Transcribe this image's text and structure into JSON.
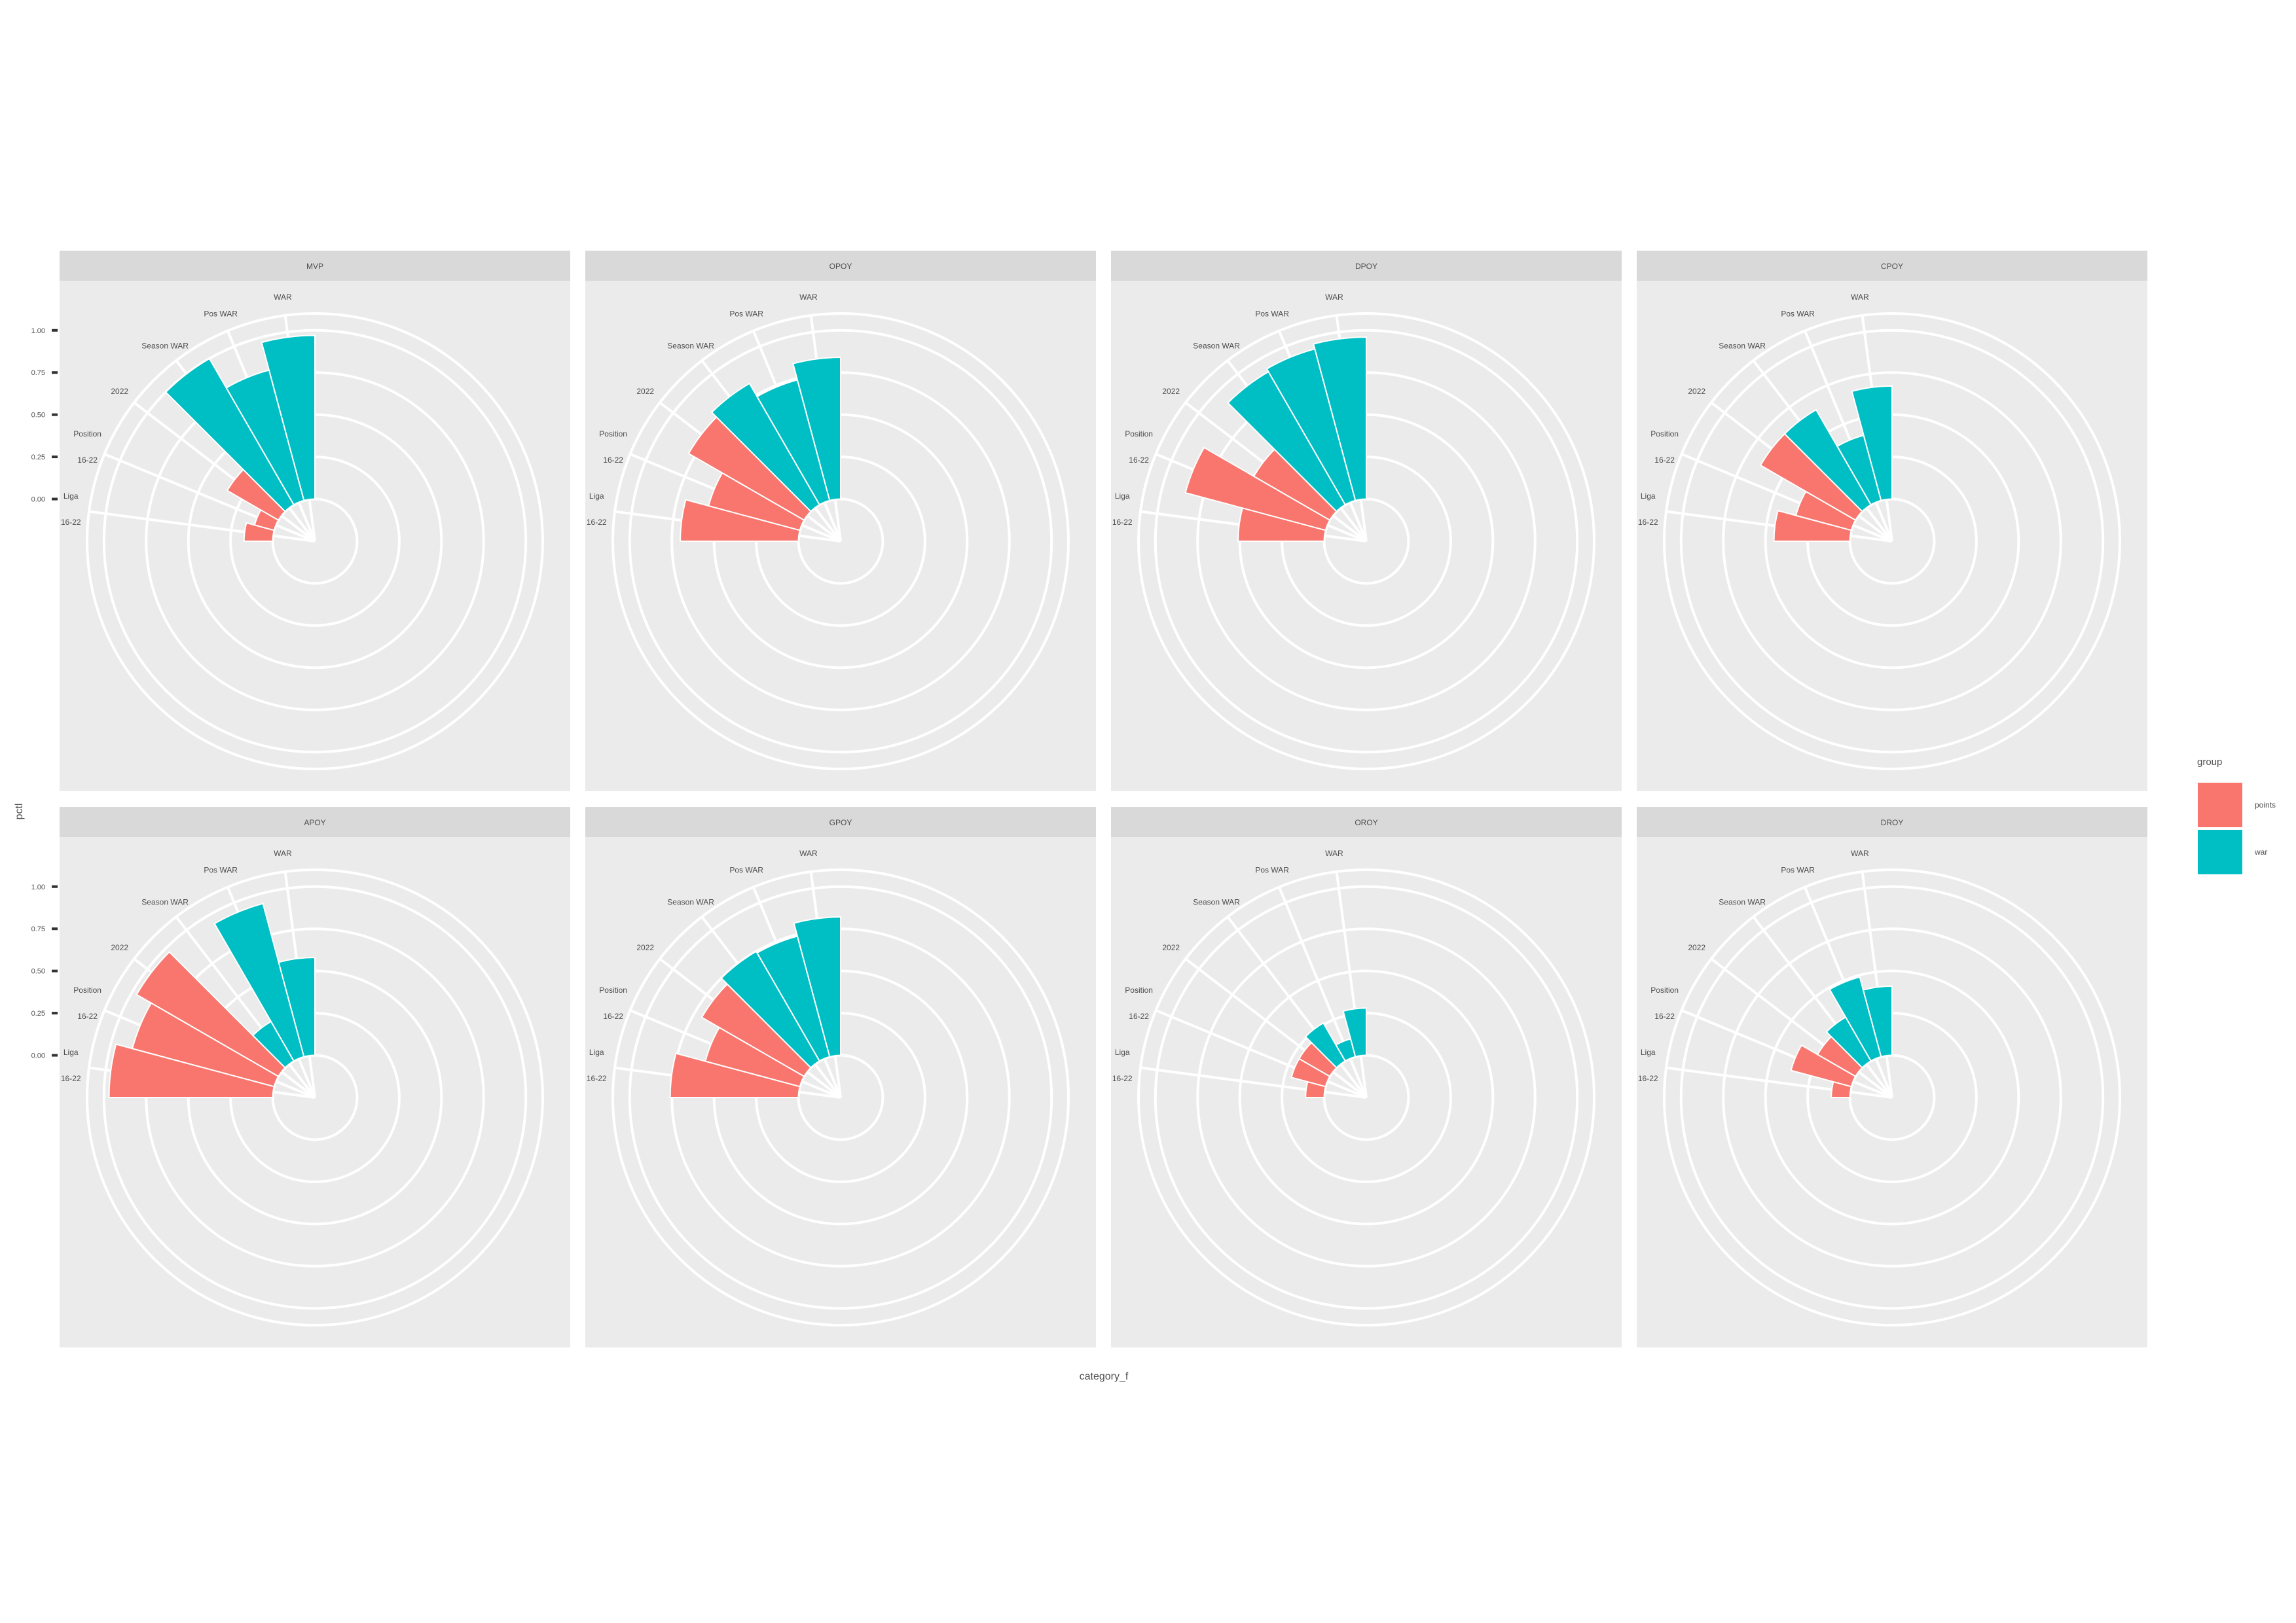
{
  "chart_data": {
    "type": "bar",
    "coord": "polar",
    "xlabel": "category_f",
    "ylabel": "pctl",
    "legend": {
      "title": "group",
      "placement": "right",
      "entries": [
        {
          "label": "points",
          "color": "#F8766D"
        },
        {
          "label": "war",
          "color": "#00BFC4"
        }
      ]
    },
    "categories": [
      {
        "id": "liga",
        "lines": [
          "Liga",
          "16-22"
        ]
      },
      {
        "id": "position",
        "lines": [
          "Position",
          "16-22"
        ]
      },
      {
        "id": "2022",
        "lines": [
          "2022"
        ]
      },
      {
        "id": "season_war",
        "lines": [
          "Season WAR"
        ]
      },
      {
        "id": "pos_war",
        "lines": [
          "Pos WAR"
        ]
      },
      {
        "id": "war",
        "lines": [
          "WAR"
        ]
      }
    ],
    "category_groups": [
      "points",
      "points",
      "points",
      "war",
      "war",
      "war"
    ],
    "yticks": [
      "0.00",
      "0.25",
      "0.50",
      "0.75",
      "1.00"
    ],
    "ytick_values": [
      0,
      0.25,
      0.5,
      0.75,
      1.0
    ],
    "ylim": [
      -0.25,
      1.1
    ],
    "grid": true,
    "panels": [
      {
        "title": "MVP",
        "values": [
          0.17,
          0.12,
          0.35,
          1.0,
          0.8,
          0.97
        ]
      },
      {
        "title": "OPOY",
        "values": [
          0.7,
          0.56,
          0.79,
          0.83,
          0.74,
          0.84
        ]
      },
      {
        "title": "DPOY",
        "values": [
          0.51,
          0.86,
          0.52,
          0.91,
          0.93,
          0.96
        ]
      },
      {
        "title": "CPOY",
        "values": [
          0.45,
          0.34,
          0.65,
          0.65,
          0.4,
          0.67
        ]
      },
      {
        "title": "APOY",
        "values": [
          0.97,
          0.87,
          0.97,
          0.27,
          0.94,
          0.58
        ]
      },
      {
        "title": "GPOY",
        "values": [
          0.76,
          0.58,
          0.7,
          0.75,
          0.74,
          0.82
        ]
      },
      {
        "title": "OROY",
        "values": [
          0.11,
          0.21,
          0.21,
          0.26,
          0.11,
          0.28
        ]
      },
      {
        "title": "DROY",
        "values": [
          0.11,
          0.37,
          0.26,
          0.3,
          0.49,
          0.41
        ]
      }
    ]
  }
}
